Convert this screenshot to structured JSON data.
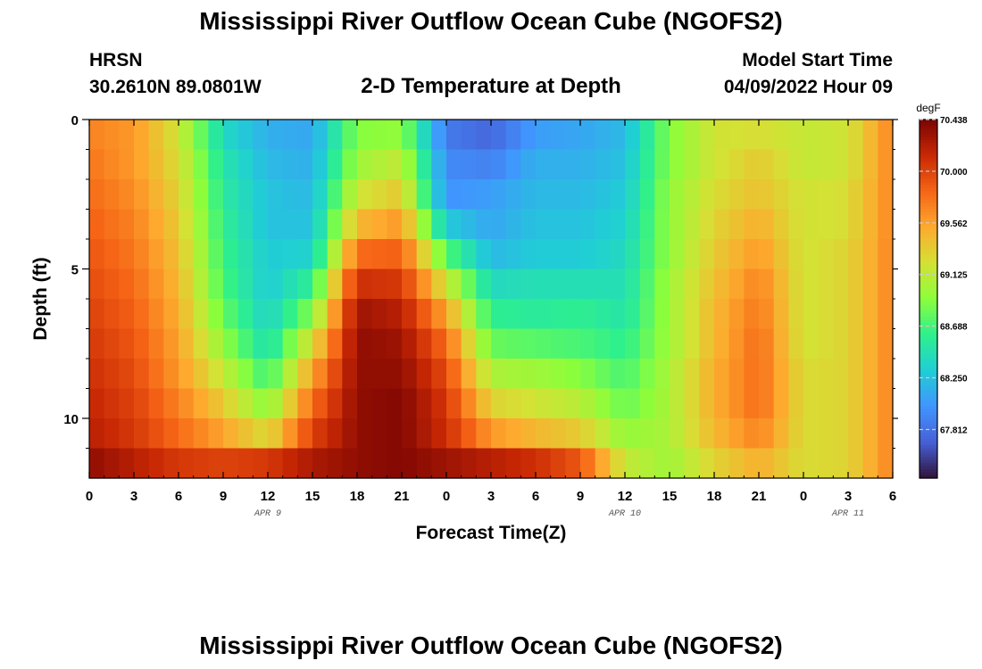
{
  "header": {
    "title": "Mississippi River Outflow Ocean Cube (NGOFS2)",
    "station": "HRSN",
    "coords": "30.2610N  89.0801W",
    "plot_title": "2-D Temperature at Depth",
    "model_start_label": "Model Start Time",
    "model_start_value": "04/09/2022 Hour 09"
  },
  "footer": {
    "title": "Mississippi River Outflow Ocean Cube (NGOFS2)"
  },
  "chart_data": {
    "type": "heatmap",
    "title": "2-D Temperature at Depth",
    "xlabel": "Forecast Time(Z)",
    "ylabel": "Depth (ft)",
    "x_tick_labels": [
      "0",
      "3",
      "6",
      "9",
      "12",
      "15",
      "18",
      "21",
      "0",
      "3",
      "6",
      "9",
      "12",
      "15",
      "18",
      "21",
      "0",
      "3",
      "6"
    ],
    "x_range_hours": [
      0,
      54
    ],
    "date_labels": [
      {
        "label": "APR 9",
        "hour": 12
      },
      {
        "label": "APR 10",
        "hour": 36
      },
      {
        "label": "APR 11",
        "hour": 51
      }
    ],
    "y_ticks": [
      0,
      5,
      10
    ],
    "y_range": [
      0,
      12
    ],
    "y_inverted": true,
    "colorbar": {
      "unit": "degF",
      "min": 67.4,
      "max": 70.438,
      "tick_labels": [
        "70.438",
        "70.000",
        "69.562",
        "69.125",
        "68.688",
        "68.250",
        "67.812"
      ],
      "tick_values": [
        70.438,
        70.0,
        69.562,
        69.125,
        68.688,
        68.25,
        67.812
      ],
      "colormap": "turbo"
    },
    "layer_depths_ft": [
      0,
      1,
      2,
      3,
      4,
      5,
      6,
      7,
      8,
      9,
      10,
      11
    ],
    "time_hours": [
      0,
      3,
      6,
      9,
      12,
      15,
      18,
      21,
      24,
      27,
      30,
      33,
      36,
      39,
      42,
      45,
      48,
      51,
      54
    ],
    "temperature_degF": [
      [
        69.7,
        69.6,
        69.2,
        68.4,
        68.15,
        68.1,
        68.9,
        68.95,
        67.85,
        67.75,
        68.05,
        68.1,
        68.2,
        68.9,
        69.2,
        69.25,
        69.15,
        69.2,
        69.7
      ],
      [
        69.75,
        69.6,
        69.25,
        68.5,
        68.2,
        68.15,
        69.0,
        69.15,
        67.95,
        67.9,
        68.15,
        68.15,
        68.25,
        68.9,
        69.2,
        69.35,
        69.15,
        69.2,
        69.7
      ],
      [
        69.8,
        69.65,
        69.3,
        68.55,
        68.25,
        68.2,
        69.2,
        69.35,
        68.0,
        68.05,
        68.2,
        68.2,
        68.3,
        68.95,
        69.25,
        69.4,
        69.2,
        69.25,
        69.7
      ],
      [
        69.85,
        69.7,
        69.35,
        68.6,
        68.25,
        68.25,
        69.45,
        69.6,
        68.3,
        68.1,
        68.25,
        68.25,
        68.35,
        68.95,
        69.3,
        69.5,
        69.2,
        69.25,
        69.7
      ],
      [
        69.9,
        69.75,
        69.4,
        68.65,
        68.3,
        68.35,
        69.8,
        69.85,
        68.75,
        68.2,
        68.3,
        68.3,
        68.4,
        68.95,
        69.35,
        69.6,
        69.2,
        69.3,
        69.7
      ],
      [
        69.95,
        69.8,
        69.45,
        68.7,
        68.3,
        68.6,
        70.1,
        70.05,
        69.2,
        68.4,
        68.45,
        68.45,
        68.45,
        69.0,
        69.4,
        69.7,
        69.2,
        69.3,
        69.7
      ],
      [
        70.0,
        69.85,
        69.5,
        68.8,
        68.35,
        68.9,
        70.3,
        70.2,
        69.55,
        68.6,
        68.55,
        68.6,
        68.5,
        69.0,
        69.45,
        69.75,
        69.2,
        69.3,
        69.7
      ],
      [
        70.05,
        69.9,
        69.55,
        68.95,
        68.45,
        69.25,
        70.35,
        70.3,
        69.8,
        68.8,
        68.75,
        68.7,
        68.6,
        69.0,
        69.45,
        69.8,
        69.2,
        69.3,
        69.7
      ],
      [
        70.1,
        69.95,
        69.6,
        69.15,
        68.65,
        69.55,
        70.35,
        70.35,
        69.95,
        69.05,
        69.0,
        68.9,
        68.7,
        69.05,
        69.5,
        69.8,
        69.25,
        69.3,
        69.7
      ],
      [
        70.15,
        70.0,
        69.7,
        69.35,
        68.9,
        69.8,
        70.35,
        70.4,
        70.05,
        69.3,
        69.2,
        69.1,
        68.8,
        69.05,
        69.5,
        69.8,
        69.25,
        69.3,
        69.7
      ],
      [
        70.2,
        70.05,
        69.8,
        69.55,
        69.25,
        70.0,
        70.35,
        70.4,
        70.1,
        69.6,
        69.45,
        69.35,
        68.95,
        69.05,
        69.45,
        69.7,
        69.25,
        69.3,
        69.7
      ],
      [
        70.35,
        70.2,
        70.05,
        70.0,
        70.05,
        70.25,
        70.35,
        70.4,
        70.3,
        70.2,
        70.1,
        69.9,
        69.15,
        69.0,
        69.3,
        69.5,
        69.25,
        69.3,
        69.7
      ]
    ]
  }
}
